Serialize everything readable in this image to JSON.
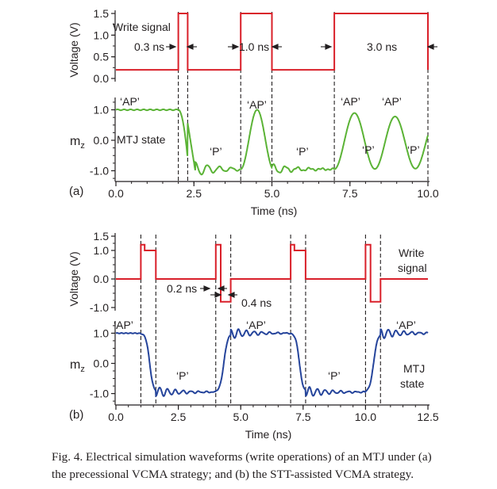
{
  "caption": {
    "line1": "Fig. 4. Electrical simulation waveforms (write operations) of an MTJ under (a)",
    "line2": "the precessional VCMA strategy; and (b) the STT-assisted VCMA strategy."
  },
  "colors": {
    "write": "#d9202a",
    "mtj_a": "#5bb336",
    "mtj_b": "#25449b",
    "axis": "#231f20"
  },
  "chart_data": [
    {
      "id": "a",
      "label": "(a)",
      "type": "line",
      "xlabel": "Time (ns)",
      "xlim": [
        0,
        10
      ],
      "xticks": [
        0,
        2.5,
        5.0,
        7.5,
        10.0
      ],
      "xtick_labels": [
        "0.0",
        "2.5",
        "5.0",
        "7.5",
        "10.0"
      ],
      "dashed_x": [
        2.0,
        2.3,
        4.0,
        5.0,
        7.0,
        10.0
      ],
      "top": {
        "ylabel": "Voltage (V)",
        "ylim": [
          0,
          1.5
        ],
        "yticks": [
          0.0,
          0.5,
          1.0,
          1.5
        ],
        "ytick_labels": [
          "0.0",
          "0.5",
          "1.0",
          "1.5"
        ],
        "series": {
          "name": "Write signal",
          "points": [
            [
              0,
              0.2
            ],
            [
              2.0,
              0.2
            ],
            [
              2.0,
              1.5
            ],
            [
              2.3,
              1.5
            ],
            [
              2.3,
              0.2
            ],
            [
              4.0,
              0.2
            ],
            [
              4.0,
              1.5
            ],
            [
              5.0,
              1.5
            ],
            [
              5.0,
              0.2
            ],
            [
              7.0,
              0.2
            ],
            [
              7.0,
              1.5
            ],
            [
              10.0,
              1.5
            ],
            [
              10.0,
              0.2
            ]
          ]
        },
        "label_text": "Write signal",
        "pulse_widths": [
          "0.3 ns",
          "1.0 ns",
          "3.0 ns"
        ]
      },
      "bottom": {
        "ylabel": "m",
        "ylabel_sub": "z",
        "ylim": [
          -1.3,
          1.3
        ],
        "yticks": [
          -1.0,
          0.0,
          1.0
        ],
        "ytick_labels": [
          "-1.0",
          "0.0",
          "1.0"
        ],
        "series_name": "MTJ state",
        "label_text": "MTJ state",
        "state_labels": [
          "‘AP’",
          "‘P’",
          "‘AP’",
          "‘P’",
          "‘AP’",
          "‘P’",
          "‘AP’",
          "‘P’"
        ]
      }
    },
    {
      "id": "b",
      "label": "(b)",
      "type": "line",
      "xlabel": "Time (ns)",
      "xlim": [
        0,
        12.5
      ],
      "xticks": [
        0,
        2.5,
        5.0,
        7.5,
        10.0,
        12.5
      ],
      "xtick_labels": [
        "0.0",
        "2.5",
        "5.0",
        "7.5",
        "10.0",
        "12.5"
      ],
      "dashed_x": [
        1.0,
        1.6,
        4.0,
        4.6,
        7.0,
        7.6,
        10.0,
        10.6
      ],
      "top": {
        "ylabel": "Voltage (V)",
        "ylim": [
          -1.0,
          1.5
        ],
        "yticks": [
          -1.0,
          0.0,
          1.0,
          1.5
        ],
        "ytick_labels": [
          "-1.0",
          "0.0",
          "1.0",
          "1.5"
        ],
        "series": {
          "name": "Write signal",
          "points": [
            [
              0,
              0
            ],
            [
              1.0,
              0
            ],
            [
              1.0,
              1.2
            ],
            [
              1.15,
              1.2
            ],
            [
              1.15,
              1.0
            ],
            [
              1.6,
              1.0
            ],
            [
              1.6,
              0
            ],
            [
              4.0,
              0
            ],
            [
              4.0,
              1.2
            ],
            [
              4.2,
              1.2
            ],
            [
              4.2,
              -0.8
            ],
            [
              4.6,
              -0.8
            ],
            [
              4.6,
              0
            ],
            [
              7.0,
              0
            ],
            [
              7.0,
              1.2
            ],
            [
              7.15,
              1.2
            ],
            [
              7.15,
              1.0
            ],
            [
              7.6,
              1.0
            ],
            [
              7.6,
              0
            ],
            [
              10.0,
              0
            ],
            [
              10.0,
              1.2
            ],
            [
              10.2,
              1.2
            ],
            [
              10.2,
              -0.8
            ],
            [
              10.6,
              -0.8
            ],
            [
              10.6,
              0
            ],
            [
              12.5,
              0
            ]
          ]
        },
        "label_line1": "Write",
        "label_line2": "signal",
        "pulse_widths": [
          "0.2 ns",
          "0.4 ns"
        ]
      },
      "bottom": {
        "ylabel": "m",
        "ylabel_sub": "z",
        "ylim": [
          -1.3,
          1.3
        ],
        "yticks": [
          -1.0,
          0.0,
          1.0
        ],
        "ytick_labels": [
          "-1.0",
          "0.0",
          "1.0"
        ],
        "series_name": "MTJ state",
        "label_line1": "MTJ",
        "label_line2": "state",
        "state_labels": [
          "‘AP’",
          "‘P’",
          "‘AP’",
          "‘P’",
          "‘AP’"
        ]
      }
    }
  ]
}
